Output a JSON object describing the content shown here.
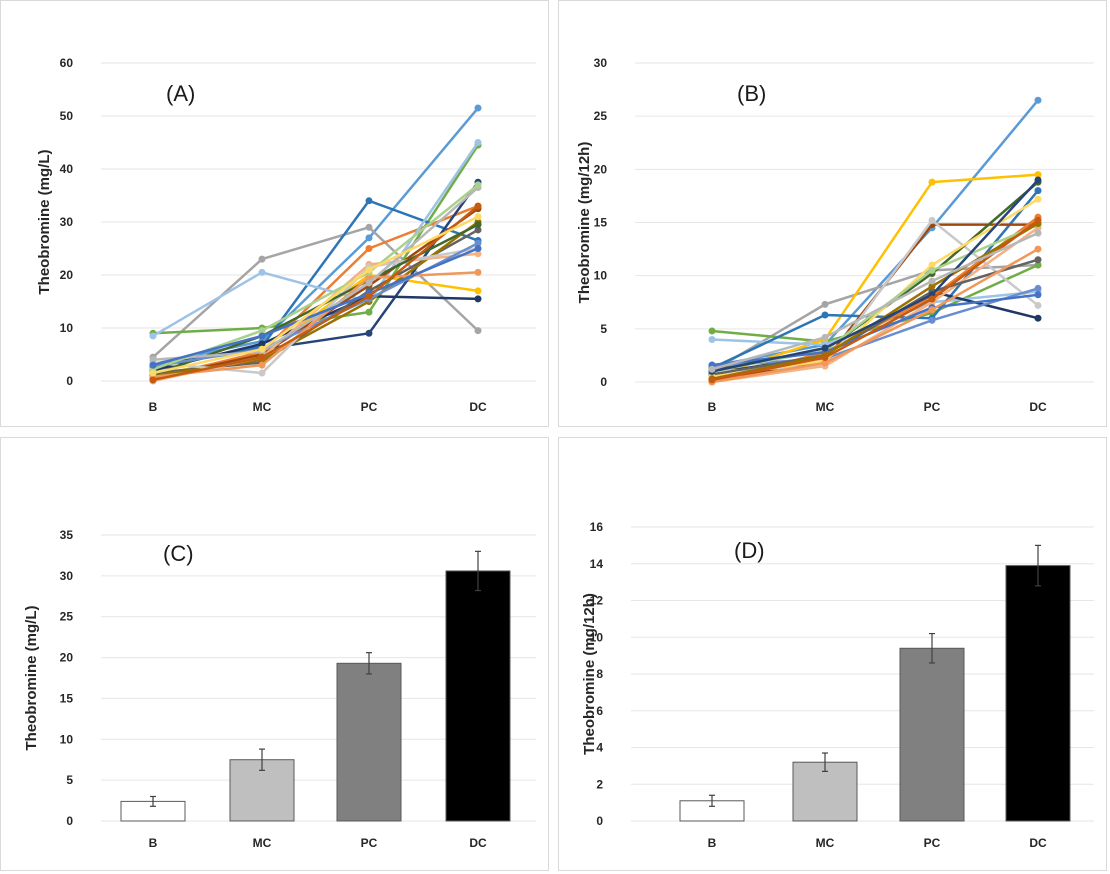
{
  "chart_data": [
    {
      "type": "line",
      "title": "(A)",
      "xlabel": "",
      "ylabel": "Theobromine (mg/L)",
      "categories": [
        "B",
        "MC",
        "PC",
        "DC"
      ],
      "ylim": [
        0,
        60
      ],
      "yticks": [
        0,
        10,
        20,
        30,
        40,
        50,
        60
      ],
      "grid": true,
      "series": [
        {
          "color": "#5b9bd5",
          "values": [
            3.2,
            7.5,
            27.0,
            51.5
          ]
        },
        {
          "color": "#a5a5a5",
          "values": [
            4.5,
            23.0,
            29.0,
            9.5
          ]
        },
        {
          "color": "#70ad47",
          "values": [
            9.0,
            10.0,
            13.0,
            44.5
          ]
        },
        {
          "color": "#2e75b6",
          "values": [
            2.5,
            6.5,
            34.0,
            26.5
          ]
        },
        {
          "color": "#ffc000",
          "values": [
            1.0,
            5.0,
            20.0,
            17.0
          ]
        },
        {
          "color": "#ed7d31",
          "values": [
            0.5,
            5.5,
            25.0,
            33.0
          ]
        },
        {
          "color": "#9dc3e6",
          "values": [
            8.5,
            20.5,
            15.0,
            45.0
          ]
        },
        {
          "color": "#264478",
          "values": [
            3.0,
            6.0,
            9.0,
            37.5
          ]
        },
        {
          "color": "#1f3864",
          "values": [
            2.0,
            7.0,
            16.0,
            15.5
          ]
        },
        {
          "color": "#9e480e",
          "values": [
            0.5,
            5.0,
            18.0,
            32.5
          ]
        },
        {
          "color": "#636363",
          "values": [
            1.5,
            3.5,
            17.0,
            28.5
          ]
        },
        {
          "color": "#997300",
          "values": [
            1.0,
            4.0,
            15.0,
            30.0
          ]
        },
        {
          "color": "#f4b183",
          "values": [
            0.0,
            4.5,
            22.0,
            24.0
          ]
        },
        {
          "color": "#c9c9c9",
          "values": [
            3.5,
            1.5,
            21.5,
            25.0
          ]
        },
        {
          "color": "#43682b",
          "values": [
            1.2,
            8.5,
            19.0,
            29.5
          ]
        },
        {
          "color": "#698ed0",
          "values": [
            2.8,
            6.0,
            15.5,
            26.0
          ]
        },
        {
          "color": "#f1975a",
          "values": [
            0.8,
            3.0,
            19.5,
            20.5
          ]
        },
        {
          "color": "#b7b7b7",
          "values": [
            4.0,
            5.5,
            18.5,
            36.5
          ]
        },
        {
          "color": "#a9d18e",
          "values": [
            2.2,
            9.5,
            20.5,
            37.0
          ]
        },
        {
          "color": "#4472c4",
          "values": [
            3.0,
            8.5,
            16.5,
            25.0
          ]
        },
        {
          "color": "#c55a11",
          "values": [
            0.2,
            4.5,
            16.0,
            33.0
          ]
        },
        {
          "color": "#ffd966",
          "values": [
            1.5,
            6.0,
            21.0,
            31.0
          ]
        }
      ]
    },
    {
      "type": "line",
      "title": "(B)",
      "xlabel": "",
      "ylabel": "Theobromine (mg/12h)",
      "categories": [
        "B",
        "MC",
        "PC",
        "DC"
      ],
      "ylim": [
        0,
        30
      ],
      "yticks": [
        0,
        5,
        10,
        15,
        20,
        25,
        30
      ],
      "grid": true,
      "series": [
        {
          "color": "#5b9bd5",
          "values": [
            1.5,
            3.5,
            14.5,
            26.5
          ]
        },
        {
          "color": "#a5a5a5",
          "values": [
            1.0,
            7.3,
            10.5,
            11.0
          ]
        },
        {
          "color": "#70ad47",
          "values": [
            4.8,
            3.8,
            6.5,
            11.0
          ]
        },
        {
          "color": "#ffc000",
          "values": [
            0.5,
            4.0,
            18.8,
            19.5
          ]
        },
        {
          "color": "#9dc3e6",
          "values": [
            4.0,
            3.5,
            7.5,
            8.5
          ]
        },
        {
          "color": "#2e75b6",
          "values": [
            1.3,
            6.3,
            6.0,
            18.0
          ]
        },
        {
          "color": "#1f3864",
          "values": [
            0.8,
            2.5,
            8.5,
            6.0
          ]
        },
        {
          "color": "#9e480e",
          "values": [
            0.2,
            2.0,
            14.8,
            14.8
          ]
        },
        {
          "color": "#ed7d31",
          "values": [
            0.0,
            2.8,
            8.0,
            15.5
          ]
        },
        {
          "color": "#c9c9c9",
          "values": [
            1.0,
            1.5,
            15.2,
            7.2
          ]
        },
        {
          "color": "#43682b",
          "values": [
            1.2,
            3.0,
            10.2,
            18.8
          ]
        },
        {
          "color": "#698ed0",
          "values": [
            1.5,
            2.2,
            5.8,
            8.8
          ]
        },
        {
          "color": "#f4b183",
          "values": [
            0.0,
            1.5,
            7.5,
            14.5
          ]
        },
        {
          "color": "#636363",
          "values": [
            0.7,
            2.5,
            8.5,
            11.5
          ]
        },
        {
          "color": "#ffd966",
          "values": [
            0.5,
            2.0,
            11.0,
            17.2
          ]
        },
        {
          "color": "#a9d18e",
          "values": [
            1.0,
            3.0,
            10.5,
            14.8
          ]
        },
        {
          "color": "#4472c4",
          "values": [
            1.6,
            2.8,
            7.0,
            8.2
          ]
        },
        {
          "color": "#997300",
          "values": [
            0.3,
            2.5,
            9.0,
            14.9
          ]
        },
        {
          "color": "#f1975a",
          "values": [
            0.0,
            1.8,
            6.8,
            12.5
          ]
        },
        {
          "color": "#264478",
          "values": [
            1.0,
            3.2,
            8.2,
            19.0
          ]
        },
        {
          "color": "#c55a11",
          "values": [
            0.2,
            2.3,
            7.8,
            15.2
          ]
        },
        {
          "color": "#b7b7b7",
          "values": [
            1.2,
            4.2,
            9.5,
            14.0
          ]
        }
      ]
    },
    {
      "type": "bar",
      "title": "(C)",
      "xlabel": "",
      "ylabel": "Theobromine (mg/L)",
      "categories": [
        "B",
        "MC",
        "PC",
        "DC"
      ],
      "values": [
        2.4,
        7.5,
        19.3,
        30.6
      ],
      "errors": [
        0.6,
        1.3,
        1.3,
        2.4
      ],
      "colors": [
        "#ffffff",
        "#bfbfbf",
        "#808080",
        "#000000"
      ],
      "ylim": [
        0,
        35
      ],
      "yticks": [
        0,
        5,
        10,
        15,
        20,
        25,
        30,
        35
      ],
      "grid": true
    },
    {
      "type": "bar",
      "title": "(D)",
      "xlabel": "",
      "ylabel": "Theobromine (mg/12h)",
      "categories": [
        "B",
        "MC",
        "PC",
        "DC"
      ],
      "values": [
        1.1,
        3.2,
        9.4,
        13.9
      ],
      "errors": [
        0.3,
        0.5,
        0.8,
        1.1
      ],
      "colors": [
        "#ffffff",
        "#bfbfbf",
        "#808080",
        "#000000"
      ],
      "ylim": [
        0,
        16
      ],
      "yticks": [
        0,
        2,
        4,
        6,
        8,
        10,
        12,
        14,
        16
      ],
      "grid": true
    }
  ]
}
